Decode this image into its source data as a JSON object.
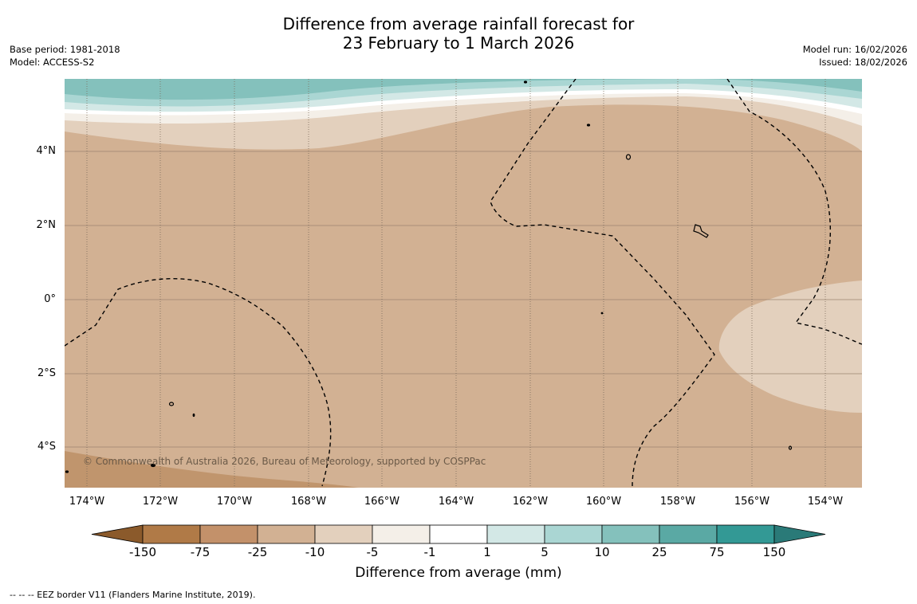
{
  "title": {
    "line1": "Difference from average rainfall forecast for",
    "line2": "23 February to 1 March 2026"
  },
  "meta_left": {
    "base_period": "Base period: 1981-2018",
    "model": "Model: ACCESS-S2"
  },
  "meta_right": {
    "model_run": "Model run: 16/02/2026",
    "issued": "Issued: 18/02/2026"
  },
  "map": {
    "lat_labels": [
      "4°N",
      "2°N",
      "0°",
      "2°S",
      "4°S"
    ],
    "lon_labels": [
      "174°W",
      "172°W",
      "170°W",
      "168°W",
      "166°W",
      "164°W",
      "162°W",
      "160°W",
      "158°W",
      "156°W",
      "154°W"
    ],
    "copyright": "© Commonwealth of Australia 2026, Bureau of Meteorology, supported by COSPPac",
    "colors": {
      "ocean_main": "#d2b193",
      "band_light_tan": "#e3d0bd",
      "band_off_white": "#f4efe8",
      "band_white": "#ffffff",
      "band_pale_teal": "#d3e8e6",
      "band_light_teal": "#aad6d3",
      "band_mid_teal": "#84c1bc",
      "dry_patch": "#c0956d"
    }
  },
  "colorbar": {
    "ticks": [
      "-150",
      "-75",
      "-25",
      "-10",
      "-5",
      "-1",
      "1",
      "5",
      "10",
      "25",
      "75",
      "150"
    ],
    "colors": [
      "#8b5a2b",
      "#b07a47",
      "#c3916a",
      "#d2b193",
      "#e3d0bd",
      "#f4efe8",
      "#ffffff",
      "#d3e8e6",
      "#aad6d3",
      "#84c1bc",
      "#5aa9a4",
      "#339995",
      "#2a7a78"
    ],
    "label": "Difference from average (mm)"
  },
  "legend_note": "--  --  -- EEZ border V11 (Flanders Marine Institute, 2019)."
}
